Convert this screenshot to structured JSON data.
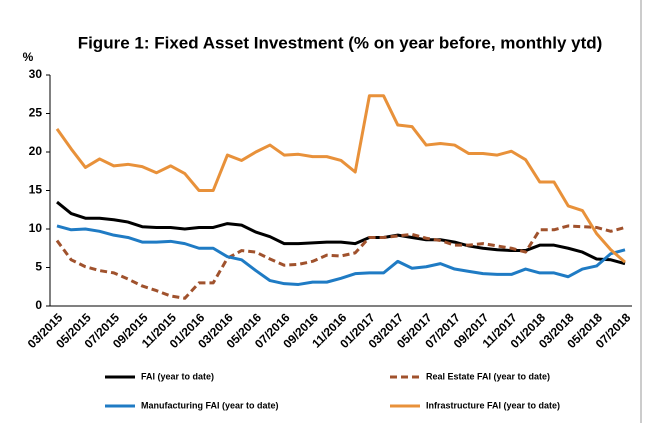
{
  "chart_data": {
    "type": "line",
    "title": "Figure 1: Fixed Asset Investment (% on year before, monthly ytd)",
    "y_label": "%",
    "categories": [
      "03/2015",
      null,
      "05/2015",
      null,
      "07/2015",
      null,
      "09/2015",
      null,
      "11/2015",
      null,
      "01/2016",
      null,
      "03/2016",
      null,
      "05/2016",
      null,
      "07/2016",
      null,
      "09/2016",
      null,
      "11/2016",
      null,
      "01/2017",
      null,
      "03/2017",
      null,
      "05/2017",
      null,
      "07/2017",
      null,
      "09/2017",
      null,
      "11/2017",
      null,
      "01/2018",
      null,
      "03/2018",
      null,
      "05/2018",
      null,
      "07/2018"
    ],
    "ylim": [
      0,
      30
    ],
    "yticks": [
      0,
      5,
      10,
      15,
      20,
      25,
      30
    ],
    "series": [
      {
        "name": "FAI (year to date)",
        "color": "#000000",
        "dashed": false,
        "values": [
          13.5,
          12.0,
          11.4,
          11.4,
          11.2,
          10.9,
          10.3,
          10.2,
          10.2,
          10.0,
          10.2,
          10.2,
          10.7,
          10.5,
          9.6,
          9.0,
          8.1,
          8.1,
          8.2,
          8.3,
          8.3,
          8.1,
          8.9,
          8.9,
          9.2,
          8.9,
          8.6,
          8.6,
          8.3,
          7.8,
          7.5,
          7.3,
          7.2,
          7.2,
          7.9,
          7.9,
          7.5,
          7.0,
          6.1,
          6.0,
          5.5
        ]
      },
      {
        "name": "Real Estate FAI (year to date)",
        "color": "#a0522d",
        "dashed": true,
        "values": [
          8.5,
          6.0,
          5.1,
          4.6,
          4.3,
          3.5,
          2.6,
          2.0,
          1.3,
          1.0,
          3.0,
          3.0,
          6.2,
          7.2,
          7.0,
          6.1,
          5.3,
          5.4,
          5.8,
          6.6,
          6.5,
          6.9,
          8.9,
          8.9,
          9.1,
          9.3,
          8.8,
          8.5,
          7.9,
          7.9,
          8.1,
          7.8,
          7.5,
          7.0,
          9.9,
          9.9,
          10.4,
          10.3,
          10.2,
          9.7,
          10.2
        ]
      },
      {
        "name": "Manufacturing FAI (year to date)",
        "color": "#1f7bc4",
        "dashed": false,
        "values": [
          10.4,
          9.9,
          10.0,
          9.7,
          9.2,
          8.9,
          8.3,
          8.3,
          8.4,
          8.1,
          7.5,
          7.5,
          6.4,
          6.0,
          4.6,
          3.3,
          2.9,
          2.8,
          3.1,
          3.1,
          3.6,
          4.2,
          4.3,
          4.3,
          5.8,
          4.9,
          5.1,
          5.5,
          4.8,
          4.5,
          4.2,
          4.1,
          4.1,
          4.8,
          4.3,
          4.3,
          3.8,
          4.8,
          5.2,
          6.8,
          7.3
        ]
      },
      {
        "name": "Infrastructure FAI (year to date)",
        "color": "#e8913a",
        "dashed": false,
        "values": [
          23.0,
          20.4,
          18.0,
          19.1,
          18.2,
          18.4,
          18.1,
          17.3,
          18.2,
          17.2,
          15.0,
          15.0,
          19.6,
          18.9,
          20.0,
          20.9,
          19.6,
          19.7,
          19.4,
          19.4,
          18.9,
          17.4,
          27.3,
          27.3,
          23.5,
          23.3,
          20.9,
          21.1,
          20.9,
          19.8,
          19.8,
          19.6,
          20.1,
          19.0,
          16.1,
          16.1,
          13.0,
          12.4,
          9.4,
          7.3,
          5.7
        ]
      }
    ]
  }
}
